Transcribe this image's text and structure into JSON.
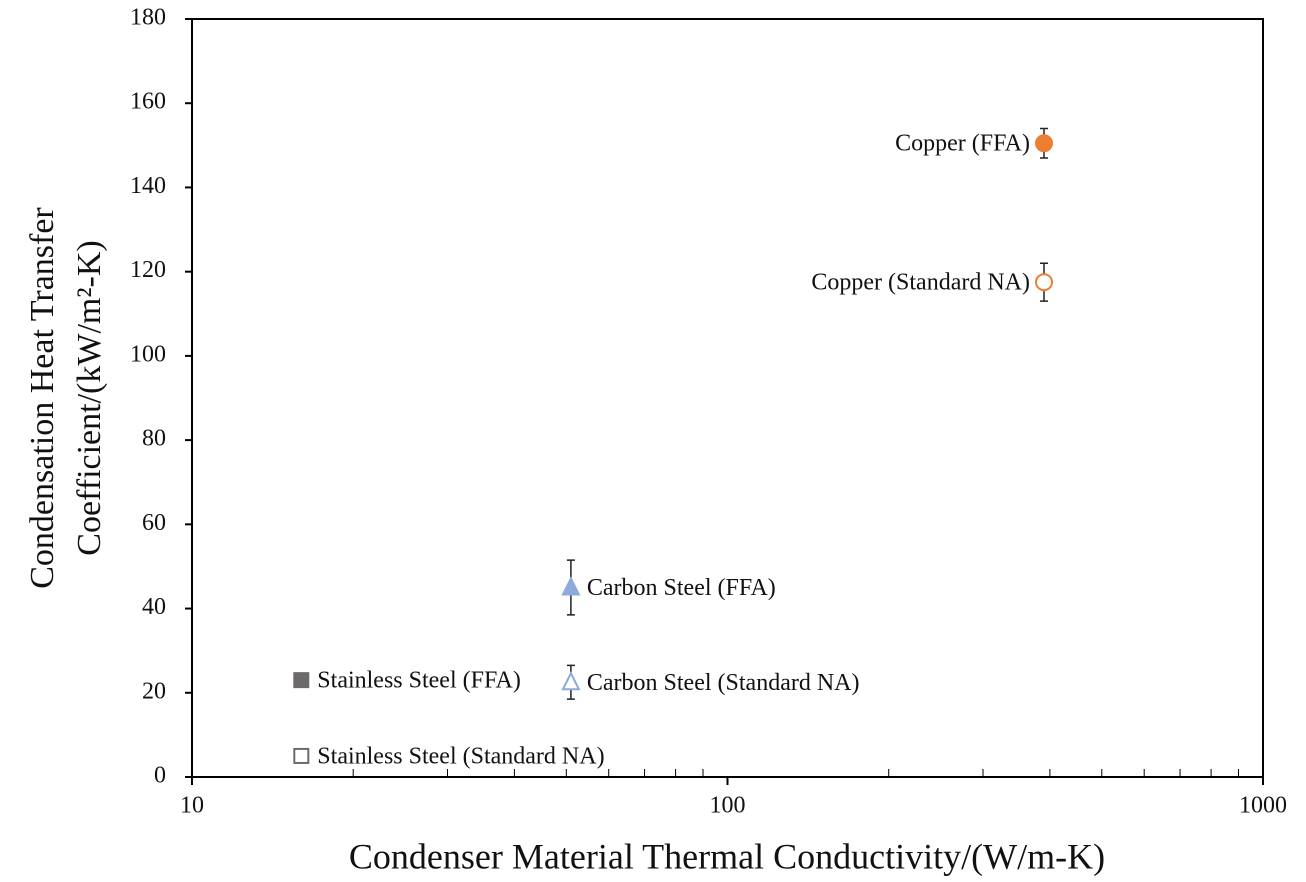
{
  "chart_data": {
    "type": "scatter",
    "xlabel": "Condenser Material Thermal Conductivity/(W/m-K)",
    "ylabel": [
      "Condensation Heat Transfer",
      "Coefficient/(kW/m²-K)"
    ],
    "xscale": "log",
    "xlim": [
      10,
      1000
    ],
    "xticks": [
      10,
      100,
      1000
    ],
    "xminorticks": [
      20,
      30,
      40,
      50,
      60,
      70,
      80,
      90,
      200,
      300,
      400,
      500,
      600,
      700,
      800,
      900
    ],
    "ylim": [
      0,
      180
    ],
    "yticks": [
      0,
      20,
      40,
      60,
      80,
      100,
      120,
      140,
      160,
      180
    ],
    "series": [
      {
        "name": "Copper (FFA)",
        "color": "#ed7d31",
        "marker": "circle",
        "filled": true,
        "x": [
          390
        ],
        "values": [
          150.5
        ],
        "errors": [
          3.5
        ]
      },
      {
        "name": "Copper (Standard NA)",
        "color": "#ed7d31",
        "marker": "circle",
        "filled": false,
        "x": [
          390
        ],
        "values": [
          117.5
        ],
        "errors": [
          4.5
        ]
      },
      {
        "name": "Carbon Steel (FFA)",
        "color": "#8eaadb",
        "marker": "triangle",
        "filled": true,
        "x": [
          51
        ],
        "values": [
          45
        ],
        "errors": [
          6.5
        ]
      },
      {
        "name": "Carbon Steel (Standard NA)",
        "color": "#8eaadb",
        "marker": "triangle",
        "filled": false,
        "x": [
          51
        ],
        "values": [
          22.5
        ],
        "errors": [
          4
        ]
      },
      {
        "name": "Stainless Steel (FFA)",
        "color": "#6d6a6a",
        "marker": "square",
        "filled": true,
        "x": [
          16
        ],
        "values": [
          23
        ],
        "errors": [
          0.5
        ]
      },
      {
        "name": "Stainless Steel (Standard NA)",
        "color": "#6d6a6a",
        "marker": "square",
        "filled": false,
        "x": [
          16
        ],
        "values": [
          5
        ],
        "errors": [
          1
        ]
      }
    ]
  }
}
